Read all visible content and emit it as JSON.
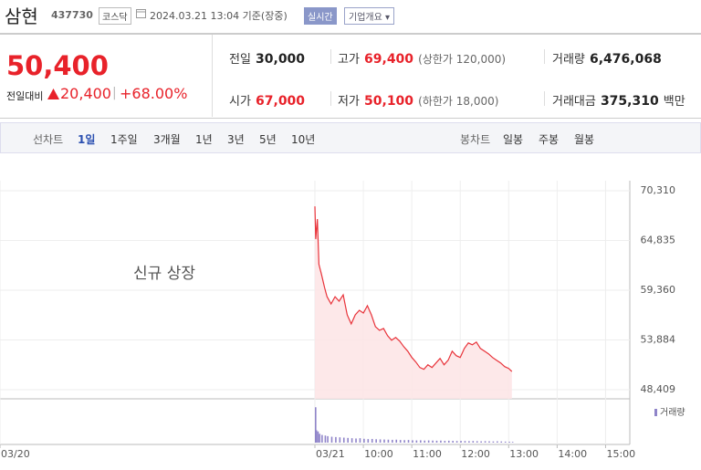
{
  "header": {
    "name": "삼현",
    "code": "437730",
    "market": "코스닥",
    "timestamp": "2024.03.21 13:04 기준(장중)",
    "realtime": "실시간",
    "company_info": "기업개요"
  },
  "quote": {
    "price": "50,400",
    "change_label": "전일대비",
    "change": "20,400",
    "change_pct": "+68.00%"
  },
  "stats": [
    {
      "label": "전일",
      "value": "30,000"
    },
    {
      "label": "고가",
      "value": "69,400",
      "note": "(상한가 120,000)"
    },
    {
      "label": "거래량",
      "value": "6,476,068"
    },
    {
      "label": "시가",
      "value": "67,000"
    },
    {
      "label": "저가",
      "value": "50,100",
      "note": "(하한가 18,000)"
    },
    {
      "label": "거래대금",
      "value": "375,310",
      "unit": "백만"
    }
  ],
  "tabs": {
    "line_label": "선차트",
    "line": [
      "1일",
      "1주일",
      "3개월",
      "1년",
      "3년",
      "5년",
      "10년"
    ],
    "candle_label": "봉차트",
    "candle": [
      "일봉",
      "주봉",
      "월봉"
    ]
  },
  "chart_data": {
    "type": "line",
    "annotation": "신규 상장",
    "x": [
      "03/21 09:00",
      "03/21 09:01",
      "03/21 09:03",
      "03/21 09:05",
      "03/21 09:08",
      "03/21 09:12",
      "03/21 09:15",
      "03/21 09:20",
      "03/21 09:25",
      "03/21 09:30",
      "03/21 09:35",
      "03/21 09:40",
      "03/21 09:45",
      "03/21 09:50",
      "03/21 09:55",
      "03/21 10:00",
      "03/21 10:05",
      "03/21 10:10",
      "03/21 10:15",
      "03/21 10:20",
      "03/21 10:25",
      "03/21 10:30",
      "03/21 10:35",
      "03/21 10:40",
      "03/21 10:45",
      "03/21 10:50",
      "03/21 10:55",
      "03/21 11:00",
      "03/21 11:05",
      "03/21 11:10",
      "03/21 11:15",
      "03/21 11:20",
      "03/21 11:25",
      "03/21 11:30",
      "03/21 11:35",
      "03/21 11:40",
      "03/21 11:45",
      "03/21 11:50",
      "03/21 11:55",
      "03/21 12:00",
      "03/21 12:05",
      "03/21 12:10",
      "03/21 12:15",
      "03/21 12:20",
      "03/21 12:25",
      "03/21 12:30",
      "03/21 12:35",
      "03/21 12:40",
      "03/21 12:45",
      "03/21 12:50",
      "03/21 12:55",
      "03/21 13:00",
      "03/21 13:04"
    ],
    "series": [
      {
        "color": "#e8333a",
        "values": [
          68600,
          65000,
          67200,
          62200,
          61150,
          59650,
          58650,
          57850,
          58650,
          58150,
          58850,
          56650,
          55650,
          56650,
          57150,
          56850,
          57650,
          56650,
          55350,
          54950,
          55150,
          54350,
          53850,
          54150,
          53750,
          53150,
          52650,
          51950,
          51450,
          50850,
          50650,
          51150,
          50850,
          51350,
          51850,
          51150,
          51650,
          52650,
          52150,
          51950,
          52950,
          53550,
          53350,
          53650,
          52950,
          52650,
          52350,
          51950,
          51650,
          51350,
          50950,
          50750,
          50400
        ]
      }
    ],
    "volume": {
      "name": "거래량",
      "color": "#8f84c9",
      "values": [
        1200000,
        420000,
        380000,
        300000,
        260000,
        240000,
        220000,
        200000,
        190000,
        180000,
        170000,
        160000,
        150000,
        140000,
        150000,
        130000,
        120000,
        125000,
        115000,
        110000,
        105000,
        100000,
        95000,
        100000,
        90000,
        85000,
        90000,
        80000,
        75000,
        80000,
        70000,
        75000,
        70000,
        65000,
        70000,
        60000,
        65000,
        60000,
        55000,
        60000,
        55000,
        50000,
        55000,
        50000,
        45000,
        50000,
        45000,
        40000,
        45000,
        40000,
        35000,
        30000,
        25000
      ],
      "ylim": [
        0,
        1300000
      ]
    },
    "ylim": [
      47400,
      71420
    ],
    "yticks": [
      {
        "value": 70310,
        "label": "70,310"
      },
      {
        "value": 64835,
        "label": "64,835"
      },
      {
        "value": 59360,
        "label": "59,360"
      },
      {
        "value": 53884,
        "label": "53,884"
      },
      {
        "value": 48409,
        "label": "48,409"
      }
    ],
    "xlim": [
      "03/20 09:00",
      "03/21 15:30"
    ],
    "xticks": [
      {
        "value": "03/20 09:00",
        "label": "03/20"
      },
      {
        "value": "03/21 09:00",
        "label": "03/21"
      },
      {
        "value": "03/21 10:00",
        "label": "10:00"
      },
      {
        "value": "03/21 11:00",
        "label": "11:00"
      },
      {
        "value": "03/21 12:00",
        "label": "12:00"
      },
      {
        "value": "03/21 13:00",
        "label": "13:00"
      },
      {
        "value": "03/21 14:00",
        "label": "14:00"
      },
      {
        "value": "03/21 15:00",
        "label": "15:00"
      }
    ],
    "grid": true
  }
}
